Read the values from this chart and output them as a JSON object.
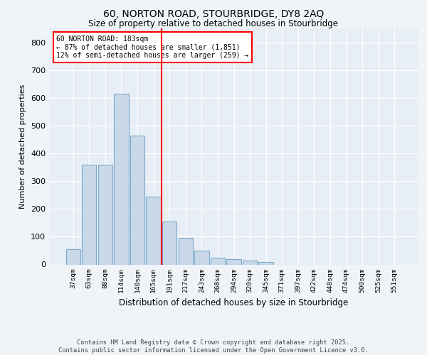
{
  "title_line1": "60, NORTON ROAD, STOURBRIDGE, DY8 2AQ",
  "title_line2": "Size of property relative to detached houses in Stourbridge",
  "xlabel": "Distribution of detached houses by size in Stourbridge",
  "ylabel": "Number of detached properties",
  "bar_labels": [
    "37sqm",
    "63sqm",
    "88sqm",
    "114sqm",
    "140sqm",
    "165sqm",
    "191sqm",
    "217sqm",
    "243sqm",
    "268sqm",
    "294sqm",
    "320sqm",
    "345sqm",
    "371sqm",
    "397sqm",
    "422sqm",
    "448sqm",
    "474sqm",
    "500sqm",
    "525sqm",
    "551sqm"
  ],
  "bar_values": [
    55,
    360,
    360,
    615,
    465,
    245,
    155,
    95,
    50,
    25,
    20,
    15,
    10,
    0,
    0,
    0,
    0,
    0,
    0,
    0,
    0
  ],
  "bar_color": "#c9d9ea",
  "bar_edgecolor": "#7aaac8",
  "vline_x_index": 6,
  "vline_color": "red",
  "annotation_text": "60 NORTON ROAD: 183sqm\n← 87% of detached houses are smaller (1,851)\n12% of semi-detached houses are larger (259) →",
  "annotation_box_color": "white",
  "annotation_box_edgecolor": "red",
  "ylim": [
    0,
    850
  ],
  "yticks": [
    0,
    100,
    200,
    300,
    400,
    500,
    600,
    700,
    800
  ],
  "footer_line1": "Contains HM Land Registry data © Crown copyright and database right 2025.",
  "footer_line2": "Contains public sector information licensed under the Open Government Licence v3.0.",
  "bg_color": "#f0f4f8",
  "plot_bg_color": "#e8eef5"
}
